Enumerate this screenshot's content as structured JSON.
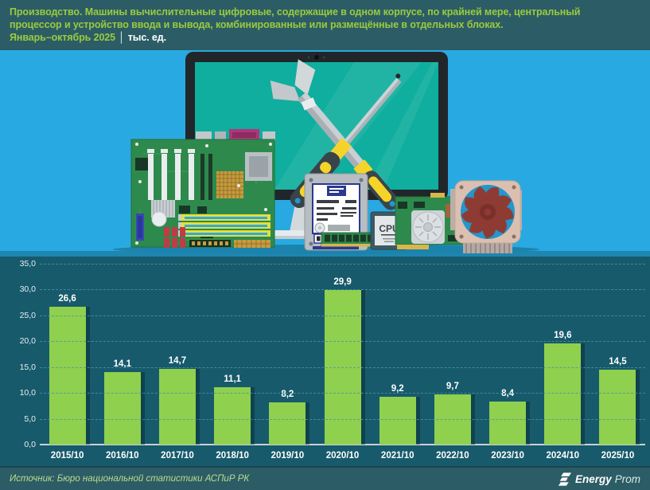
{
  "header": {
    "title_line1": "Производство. Машины вычислительные цифровые, содержащие в одном корпусе, по крайней мере, центральный",
    "title_line2": "процессор и устройство ввода и вывода, комбинированные или размещённые в отдельных блоках.",
    "period": "Январь–октябрь 2025",
    "separator": "│",
    "unit": "тыс. ед."
  },
  "illustration": {
    "cpu_label": "CPU",
    "components": [
      "monitor",
      "wrench",
      "screwdriver",
      "motherboard",
      "hard-drive",
      "ram",
      "cpu",
      "gpu",
      "cooling-fan"
    ]
  },
  "chart_data": {
    "type": "bar",
    "title": "Производство. Машины вычислительные цифровые. Январь–октябрь 2025, тыс. ед.",
    "categories": [
      "2015/10",
      "2016/10",
      "2017/10",
      "2018/10",
      "2019/10",
      "2020/10",
      "2021/10",
      "2022/10",
      "2023/10",
      "2024/10",
      "2025/10"
    ],
    "values": [
      26.6,
      14.1,
      14.7,
      11.1,
      8.2,
      29.9,
      9.2,
      9.7,
      8.4,
      19.6,
      14.5
    ],
    "value_labels": [
      "26,6",
      "14,1",
      "14,7",
      "11,1",
      "8,2",
      "29,9",
      "9,2",
      "9,7",
      "8,4",
      "19,6",
      "14,5"
    ],
    "xlabel": "",
    "ylabel": "",
    "ylim": [
      0,
      35
    ],
    "yticks": [
      {
        "value": 35,
        "label": "35,0"
      },
      {
        "value": 30,
        "label": "30,0"
      },
      {
        "value": 25,
        "label": "25,0"
      },
      {
        "value": 20,
        "label": "20,0"
      },
      {
        "value": 15,
        "label": "15,0"
      },
      {
        "value": 10,
        "label": "10,0"
      },
      {
        "value": 5,
        "label": "5,0"
      },
      {
        "value": 0,
        "label": "0,0"
      }
    ],
    "grid": "horizontal-dashed",
    "legend": "none"
  },
  "footer": {
    "source": "Источник: Бюро национальной статистики АСПиР РК",
    "logo_energy": "Energy",
    "logo_prom": "Prom"
  },
  "colors": {
    "header_background": "#2C5D66",
    "stage_background": "#29A9E1",
    "chart_background": "#175A6B",
    "bar": "#8FD04E",
    "title_green": "#9ACB3E",
    "gridline": "#4E94A9",
    "source_text": "#B9DC8E"
  }
}
